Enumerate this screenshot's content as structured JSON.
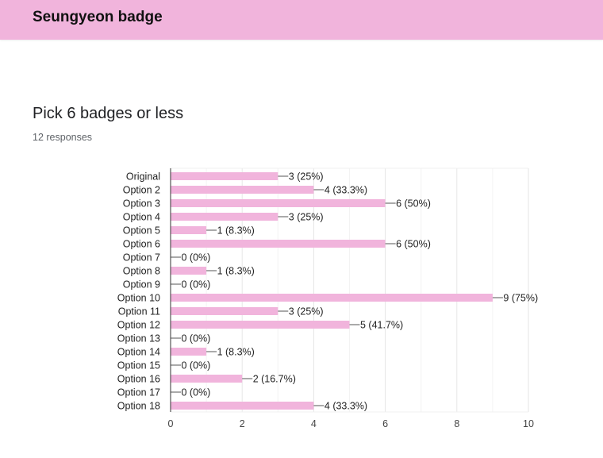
{
  "header": {
    "title": "Seungyeon badge"
  },
  "question": {
    "title": "Pick 6 badges or less",
    "responses": "12 responses"
  },
  "colors": {
    "header_bg": "#f1b4dc",
    "bar": "#f1b4dc",
    "grid": "#ebebeb",
    "axis": "#333333"
  },
  "chart_data": {
    "type": "bar",
    "orientation": "horizontal",
    "categories": [
      "Original",
      "Option 2",
      "Option 3",
      "Option 4",
      "Option 5",
      "Option 6",
      "Option 7",
      "Option 8",
      "Option 9",
      "Option 10",
      "Option 11",
      "Option 12",
      "Option 13",
      "Option 14",
      "Option 15",
      "Option 16",
      "Option 17",
      "Option 18"
    ],
    "values": [
      3,
      4,
      6,
      3,
      1,
      6,
      0,
      1,
      0,
      9,
      3,
      5,
      0,
      1,
      0,
      2,
      0,
      4
    ],
    "data_labels": [
      "3 (25%)",
      "4 (33.3%)",
      "6 (50%)",
      "3 (25%)",
      "1 (8.3%)",
      "6 (50%)",
      "0 (0%)",
      "1 (8.3%)",
      "0 (0%)",
      "9 (75%)",
      "3 (25%)",
      "5 (41.7%)",
      "0 (0%)",
      "1 (8.3%)",
      "0 (0%)",
      "2 (16.7%)",
      "0 (0%)",
      "4 (33.3%)"
    ],
    "x_ticks": [
      0,
      2,
      4,
      6,
      8,
      10
    ],
    "xlim": [
      0,
      10
    ],
    "grid": true,
    "legend": "none",
    "title": "",
    "xlabel": "",
    "ylabel": ""
  }
}
